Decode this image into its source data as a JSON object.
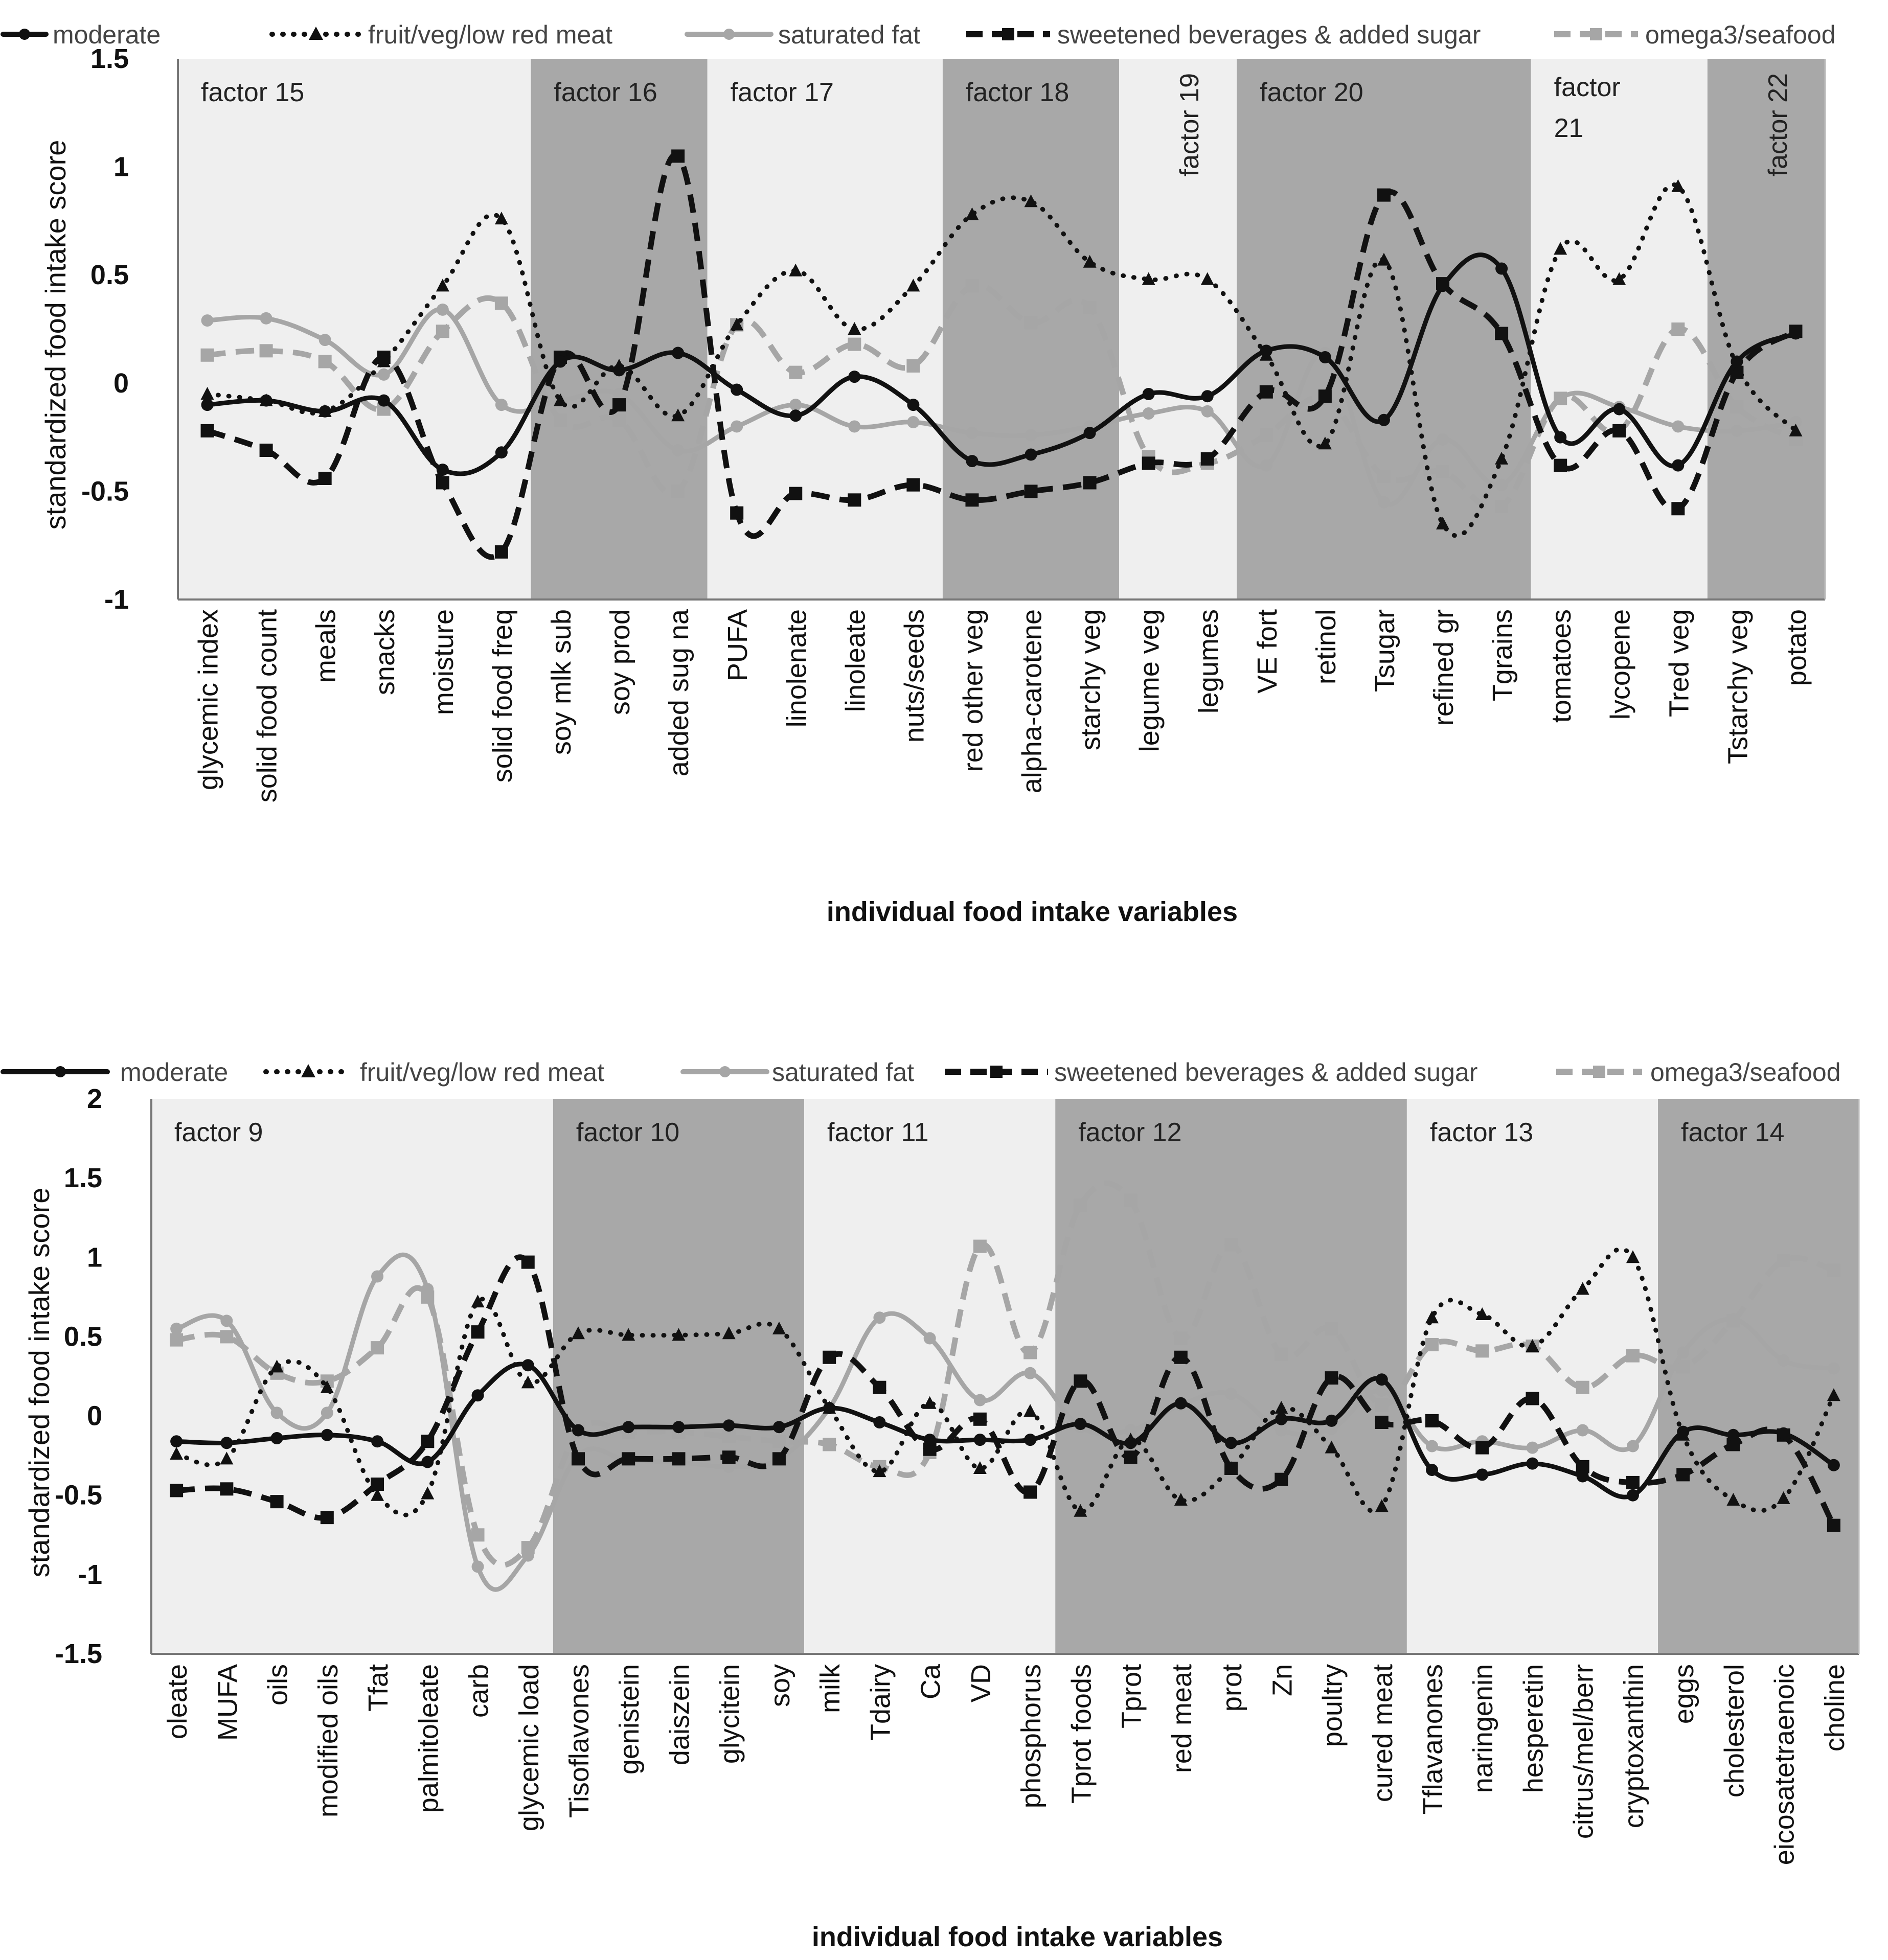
{
  "legend": [
    {
      "name": "moderate",
      "color": "#111111",
      "dash": "solid",
      "marker": "circle",
      "width": 9
    },
    {
      "name": "fruit/veg/low red meat",
      "color": "#111111",
      "dash": "dot",
      "marker": "triangle",
      "width": 9
    },
    {
      "name": "saturated fat",
      "color": "#a6a6a6",
      "dash": "solid",
      "marker": "circle",
      "width": 9
    },
    {
      "name": "sweetened beverages & added sugar",
      "color": "#111111",
      "dash": "dash",
      "marker": "square",
      "width": 11
    },
    {
      "name": "omega3/seafood",
      "color": "#a6a6a6",
      "dash": "dash",
      "marker": "square",
      "width": 11
    }
  ],
  "chart_data": [
    {
      "type": "line",
      "ylabel": "standardized food intake score",
      "xlabel": "individual food intake variables",
      "ylim": [
        -1,
        1.5
      ],
      "yticks": [
        "-1",
        "-0.5",
        "0",
        "0.5",
        "1",
        "1.5"
      ],
      "ytick_values": [
        -1,
        -0.5,
        0,
        0.5,
        1,
        1.5
      ],
      "categories": [
        "glycemic index",
        "solid food count",
        "meals",
        "snacks",
        "moisture",
        "solid food freq",
        "soy mlk sub",
        "soy prod",
        "added sug na",
        "PUFA",
        "linolenate",
        "linoleate",
        "nuts/seeds",
        "red other veg",
        "alpha-carotene",
        "starchy veg",
        "legume veg",
        "legumes",
        "VE fort",
        "retinol",
        "Tsugar",
        "refined gr",
        "Tgrains",
        "tomatoes",
        "lycopene",
        "Tred veg",
        "Tstarchy veg",
        "potato"
      ],
      "factors": [
        {
          "label": "factor 15",
          "start": 0,
          "end": 5,
          "shade": "light"
        },
        {
          "label": "factor 16",
          "start": 6,
          "end": 8,
          "shade": "dark"
        },
        {
          "label": "factor 17",
          "start": 9,
          "end": 12,
          "shade": "light"
        },
        {
          "label": "factor 18",
          "start": 13,
          "end": 15,
          "shade": "dark"
        },
        {
          "label": "factor 19",
          "start": 16,
          "end": 17,
          "shade": "light",
          "vertical": true
        },
        {
          "label": "factor 20",
          "start": 18,
          "end": 22,
          "shade": "dark"
        },
        {
          "label": "factor 21",
          "start": 23,
          "end": 25,
          "shade": "light",
          "wrap": true
        },
        {
          "label": "factor 22",
          "start": 26,
          "end": 27,
          "shade": "dark",
          "vertical": true
        }
      ],
      "series": [
        {
          "name": "moderate",
          "values": [
            -0.1,
            -0.08,
            -0.13,
            -0.08,
            -0.4,
            -0.32,
            0.1,
            0.06,
            0.14,
            -0.03,
            -0.15,
            0.03,
            -0.1,
            -0.36,
            -0.33,
            -0.23,
            -0.05,
            -0.06,
            0.15,
            0.12,
            -0.17,
            0.45,
            0.53,
            -0.25,
            -0.12,
            -0.38,
            0.1,
            0.23
          ]
        },
        {
          "name": "fruit/veg/low red meat",
          "values": [
            -0.05,
            -0.08,
            -0.13,
            0.1,
            0.45,
            0.76,
            -0.08,
            0.08,
            -0.15,
            0.27,
            0.52,
            0.25,
            0.45,
            0.78,
            0.84,
            0.56,
            0.48,
            0.48,
            0.13,
            -0.28,
            0.57,
            -0.65,
            -0.35,
            0.62,
            0.48,
            0.91,
            0.08,
            -0.22
          ]
        },
        {
          "name": "saturated fat",
          "values": [
            0.29,
            0.3,
            0.2,
            0.04,
            0.34,
            -0.1,
            -0.08,
            -0.05,
            -0.31,
            -0.2,
            -0.1,
            -0.2,
            -0.18,
            -0.23,
            -0.24,
            -0.2,
            -0.14,
            -0.13,
            -0.38,
            0.14,
            -0.55,
            -0.26,
            -0.47,
            -0.07,
            -0.11,
            -0.2,
            -0.22,
            -0.18
          ]
        },
        {
          "name": "sweetened beverages & added sugar",
          "values": [
            -0.22,
            -0.31,
            -0.44,
            0.12,
            -0.46,
            -0.78,
            0.12,
            -0.1,
            1.05,
            -0.6,
            -0.51,
            -0.54,
            -0.47,
            -0.54,
            -0.5,
            -0.46,
            -0.37,
            -0.35,
            -0.04,
            -0.06,
            0.87,
            0.46,
            0.23,
            -0.38,
            -0.22,
            -0.58,
            0.05,
            0.24
          ]
        },
        {
          "name": "omega3/seafood",
          "values": [
            0.13,
            0.15,
            0.1,
            -0.12,
            0.24,
            0.37,
            -0.17,
            -0.17,
            -0.5,
            0.27,
            0.05,
            0.18,
            0.08,
            0.45,
            0.28,
            0.35,
            -0.34,
            -0.37,
            -0.24,
            -0.07,
            -0.43,
            -0.41,
            -0.57,
            -0.07,
            -0.22,
            0.25,
            -0.11,
            -0.26
          ]
        }
      ]
    },
    {
      "type": "line",
      "ylabel": "standardized food intake score",
      "xlabel": "individual food intake variables",
      "ylim": [
        -1.5,
        2
      ],
      "yticks": [
        "-1.5",
        "-1",
        "-0.5",
        "0",
        "0.5",
        "1",
        "1.5",
        "2"
      ],
      "ytick_values": [
        -1.5,
        -1,
        -0.5,
        0,
        0.5,
        1,
        1.5,
        2
      ],
      "categories": [
        "oleate",
        "MUFA",
        "oils",
        "modified oils",
        "Tfat",
        "palmitoleate",
        "carb",
        "glycemic load",
        "Tisoflavones",
        "genistein",
        "daiszein",
        "glycitein",
        "soy",
        "milk",
        "Tdairy",
        "Ca",
        "VD",
        "phosphorus",
        "Tprot foods",
        "Tprot",
        "red meat",
        "prot",
        "Zn",
        "poultry",
        "cured meat",
        "Tflavanones",
        "naringenin",
        "hesperetin",
        "citrus/mel/berr",
        "cryptoxanthin",
        "eggs",
        "cholesterol",
        "eicosatetraenoic",
        "choline"
      ],
      "factors": [
        {
          "label": "factor 9",
          "start": 0,
          "end": 7,
          "shade": "light"
        },
        {
          "label": "factor 10",
          "start": 8,
          "end": 12,
          "shade": "dark"
        },
        {
          "label": "factor 11",
          "start": 13,
          "end": 17,
          "shade": "light"
        },
        {
          "label": "factor 12",
          "start": 18,
          "end": 24,
          "shade": "dark"
        },
        {
          "label": "factor 13",
          "start": 25,
          "end": 29,
          "shade": "light"
        },
        {
          "label": "factor 14",
          "start": 30,
          "end": 33,
          "shade": "dark"
        }
      ],
      "series": [
        {
          "name": "moderate",
          "values": [
            -0.16,
            -0.17,
            -0.14,
            -0.12,
            -0.16,
            -0.29,
            0.13,
            0.32,
            -0.09,
            -0.07,
            -0.07,
            -0.06,
            -0.07,
            0.05,
            -0.04,
            -0.15,
            -0.15,
            -0.15,
            -0.05,
            -0.17,
            0.08,
            -0.17,
            -0.02,
            -0.03,
            0.23,
            -0.34,
            -0.37,
            -0.3,
            -0.38,
            -0.5,
            -0.1,
            -0.12,
            -0.11,
            -0.31
          ]
        },
        {
          "name": "fruit/veg/low red meat",
          "values": [
            -0.24,
            -0.27,
            0.31,
            0.18,
            -0.5,
            -0.49,
            0.72,
            0.21,
            0.52,
            0.51,
            0.51,
            0.52,
            0.55,
            0.05,
            -0.35,
            0.08,
            -0.33,
            0.03,
            -0.6,
            -0.15,
            -0.53,
            -0.33,
            0.05,
            -0.2,
            -0.57,
            0.62,
            0.64,
            0.44,
            0.8,
            1.0,
            -0.12,
            -0.53,
            -0.52,
            0.13
          ]
        },
        {
          "name": "saturated fat",
          "values": [
            0.55,
            0.6,
            0.02,
            0.02,
            0.88,
            0.8,
            -0.95,
            -0.88,
            -0.25,
            -0.28,
            -0.29,
            -0.32,
            -0.27,
            0.05,
            0.62,
            0.49,
            0.1,
            0.27,
            -0.07,
            -0.09,
            0.07,
            0.14,
            -0.09,
            -0.08,
            0.16,
            -0.19,
            -0.16,
            -0.2,
            -0.09,
            -0.19,
            0.4,
            0.61,
            0.35,
            0.3
          ]
        },
        {
          "name": "sweetened beverages & added sugar",
          "values": [
            -0.47,
            -0.46,
            -0.54,
            -0.64,
            -0.43,
            -0.16,
            0.53,
            0.97,
            -0.27,
            -0.27,
            -0.27,
            -0.26,
            -0.27,
            0.37,
            0.18,
            -0.21,
            -0.02,
            -0.48,
            0.22,
            -0.26,
            0.37,
            -0.33,
            -0.4,
            0.24,
            -0.04,
            -0.03,
            -0.2,
            0.11,
            -0.32,
            -0.42,
            -0.37,
            -0.18,
            -0.12,
            -0.69
          ]
        },
        {
          "name": "omega3/seafood",
          "values": [
            0.48,
            0.5,
            0.27,
            0.22,
            0.43,
            0.75,
            -0.75,
            -0.83,
            -0.1,
            -0.1,
            -0.1,
            -0.13,
            -0.16,
            -0.18,
            -0.32,
            -0.23,
            1.07,
            0.4,
            1.33,
            1.36,
            0.49,
            1.08,
            0.39,
            0.55,
            0.07,
            0.45,
            0.41,
            0.44,
            0.18,
            0.38,
            0.31,
            0.6,
            0.98,
            0.92
          ]
        }
      ]
    }
  ]
}
